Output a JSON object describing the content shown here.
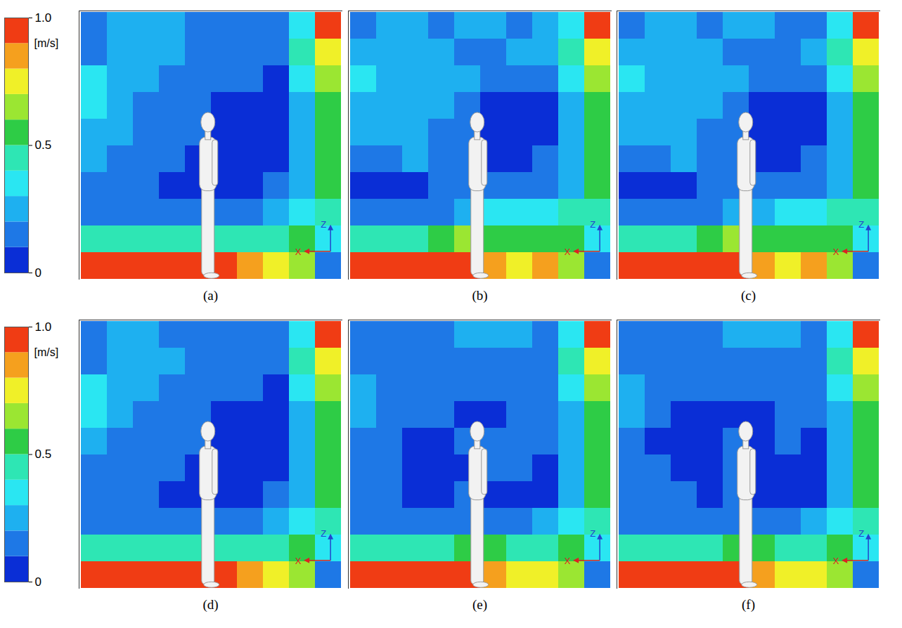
{
  "chart_data": {
    "type": "heatmap",
    "tick_labels": false,
    "xlabel": "X",
    "ylabel": "Z",
    "colorbar": {
      "label": "[m/s]",
      "range": [
        0,
        1
      ],
      "ticks": [
        0,
        0.5,
        {
          "value": 1,
          "label": "1.0"
        }
      ],
      "levels": [
        0,
        0.1,
        0.2,
        0.3,
        0.4,
        0.5,
        0.6,
        0.7,
        0.8,
        0.9,
        1
      ],
      "colors": [
        "#0a2ed6",
        "#1e78e6",
        "#1eb0f0",
        "#2ae6f2",
        "#2ee6b4",
        "#2ecc46",
        "#9be632",
        "#f0f028",
        "#f5a01e",
        "#f03c14"
      ]
    },
    "panels": [
      {
        "title": "(a)",
        "cells": [
          [
            0.15,
            0.25,
            0.25,
            0.25,
            0.15,
            0.15,
            0.15,
            0.15,
            0.35,
            0.95
          ],
          [
            0.15,
            0.25,
            0.25,
            0.25,
            0.15,
            0.15,
            0.15,
            0.15,
            0.45,
            0.75
          ],
          [
            0.3,
            0.25,
            0.25,
            0.15,
            0.15,
            0.15,
            0.15,
            0.05,
            0.35,
            0.6
          ],
          [
            0.3,
            0.25,
            0.15,
            0.15,
            0.15,
            0.05,
            0.05,
            0.05,
            0.25,
            0.55
          ],
          [
            0.25,
            0.25,
            0.15,
            0.15,
            0.15,
            0.05,
            0.05,
            0.05,
            0.25,
            0.55
          ],
          [
            0.2,
            0.15,
            0.15,
            0.15,
            0.05,
            0.05,
            0.05,
            0.05,
            0.25,
            0.5
          ],
          [
            0.15,
            0.15,
            0.15,
            0.05,
            0.05,
            0.05,
            0.05,
            0.15,
            0.25,
            0.5
          ],
          [
            0.15,
            0.15,
            0.15,
            0.15,
            0.15,
            0.15,
            0.15,
            0.25,
            0.35,
            0.45
          ],
          [
            0.45,
            0.45,
            0.45,
            0.45,
            0.45,
            0.45,
            0.45,
            0.45,
            0.55,
            0.35
          ],
          [
            0.95,
            0.95,
            0.95,
            0.95,
            0.95,
            0.95,
            0.85,
            0.75,
            0.65,
            0.15
          ]
        ]
      },
      {
        "title": "(b)",
        "cells": [
          [
            0.15,
            0.25,
            0.25,
            0.15,
            0.25,
            0.25,
            0.15,
            0.25,
            0.35,
            0.95
          ],
          [
            0.25,
            0.25,
            0.25,
            0.25,
            0.15,
            0.15,
            0.25,
            0.25,
            0.45,
            0.75
          ],
          [
            0.3,
            0.25,
            0.25,
            0.25,
            0.25,
            0.15,
            0.15,
            0.15,
            0.35,
            0.6
          ],
          [
            0.25,
            0.25,
            0.25,
            0.25,
            0.15,
            0.05,
            0.05,
            0.05,
            0.25,
            0.55
          ],
          [
            0.25,
            0.25,
            0.25,
            0.15,
            0.15,
            0.05,
            0.05,
            0.05,
            0.25,
            0.55
          ],
          [
            0.15,
            0.15,
            0.25,
            0.15,
            0.15,
            0.05,
            0.05,
            0.15,
            0.25,
            0.5
          ],
          [
            0.05,
            0.05,
            0.05,
            0.15,
            0.15,
            0.15,
            0.15,
            0.15,
            0.25,
            0.5
          ],
          [
            0.15,
            0.15,
            0.15,
            0.15,
            0.25,
            0.35,
            0.35,
            0.35,
            0.45,
            0.45
          ],
          [
            0.45,
            0.45,
            0.45,
            0.55,
            0.65,
            0.55,
            0.55,
            0.55,
            0.55,
            0.35
          ],
          [
            0.95,
            0.95,
            0.95,
            0.95,
            0.95,
            0.85,
            0.75,
            0.85,
            0.65,
            0.15
          ]
        ]
      },
      {
        "title": "(c)",
        "cells": [
          [
            0.15,
            0.25,
            0.25,
            0.15,
            0.25,
            0.25,
            0.15,
            0.15,
            0.35,
            0.95
          ],
          [
            0.25,
            0.25,
            0.25,
            0.25,
            0.15,
            0.15,
            0.15,
            0.25,
            0.45,
            0.75
          ],
          [
            0.3,
            0.25,
            0.25,
            0.25,
            0.25,
            0.15,
            0.15,
            0.15,
            0.35,
            0.6
          ],
          [
            0.25,
            0.25,
            0.25,
            0.25,
            0.15,
            0.05,
            0.05,
            0.05,
            0.25,
            0.55
          ],
          [
            0.25,
            0.25,
            0.25,
            0.15,
            0.15,
            0.05,
            0.05,
            0.05,
            0.25,
            0.55
          ],
          [
            0.15,
            0.15,
            0.25,
            0.15,
            0.15,
            0.05,
            0.05,
            0.15,
            0.25,
            0.5
          ],
          [
            0.05,
            0.05,
            0.05,
            0.15,
            0.15,
            0.15,
            0.15,
            0.15,
            0.25,
            0.5
          ],
          [
            0.15,
            0.15,
            0.15,
            0.15,
            0.25,
            0.25,
            0.35,
            0.35,
            0.45,
            0.45
          ],
          [
            0.45,
            0.45,
            0.45,
            0.55,
            0.65,
            0.55,
            0.55,
            0.55,
            0.55,
            0.35
          ],
          [
            0.95,
            0.95,
            0.95,
            0.95,
            0.95,
            0.85,
            0.75,
            0.85,
            0.65,
            0.15
          ]
        ]
      },
      {
        "title": "(d)",
        "cells": [
          [
            0.15,
            0.25,
            0.25,
            0.15,
            0.15,
            0.15,
            0.15,
            0.15,
            0.35,
            0.95
          ],
          [
            0.15,
            0.25,
            0.25,
            0.25,
            0.15,
            0.15,
            0.15,
            0.15,
            0.45,
            0.75
          ],
          [
            0.3,
            0.25,
            0.25,
            0.15,
            0.15,
            0.15,
            0.15,
            0.05,
            0.35,
            0.6
          ],
          [
            0.3,
            0.25,
            0.15,
            0.15,
            0.15,
            0.05,
            0.05,
            0.05,
            0.25,
            0.55
          ],
          [
            0.25,
            0.15,
            0.15,
            0.15,
            0.15,
            0.05,
            0.05,
            0.05,
            0.25,
            0.55
          ],
          [
            0.15,
            0.15,
            0.15,
            0.15,
            0.05,
            0.05,
            0.05,
            0.05,
            0.25,
            0.5
          ],
          [
            0.15,
            0.15,
            0.15,
            0.05,
            0.05,
            0.05,
            0.05,
            0.15,
            0.25,
            0.5
          ],
          [
            0.15,
            0.15,
            0.15,
            0.15,
            0.15,
            0.15,
            0.15,
            0.25,
            0.35,
            0.45
          ],
          [
            0.45,
            0.45,
            0.45,
            0.45,
            0.45,
            0.45,
            0.45,
            0.45,
            0.55,
            0.35
          ],
          [
            0.95,
            0.95,
            0.95,
            0.95,
            0.95,
            0.95,
            0.85,
            0.75,
            0.65,
            0.15
          ]
        ]
      },
      {
        "title": "(e)",
        "cells": [
          [
            0.15,
            0.15,
            0.15,
            0.15,
            0.25,
            0.25,
            0.25,
            0.15,
            0.35,
            0.95
          ],
          [
            0.15,
            0.15,
            0.15,
            0.15,
            0.15,
            0.15,
            0.15,
            0.15,
            0.45,
            0.75
          ],
          [
            0.25,
            0.15,
            0.15,
            0.15,
            0.15,
            0.15,
            0.15,
            0.15,
            0.35,
            0.6
          ],
          [
            0.25,
            0.15,
            0.15,
            0.15,
            0.05,
            0.05,
            0.15,
            0.15,
            0.25,
            0.55
          ],
          [
            0.15,
            0.15,
            0.05,
            0.05,
            0.15,
            0.15,
            0.15,
            0.15,
            0.25,
            0.55
          ],
          [
            0.15,
            0.15,
            0.05,
            0.05,
            0.05,
            0.15,
            0.15,
            0.05,
            0.25,
            0.5
          ],
          [
            0.15,
            0.15,
            0.05,
            0.05,
            0.15,
            0.05,
            0.05,
            0.05,
            0.25,
            0.5
          ],
          [
            0.15,
            0.15,
            0.15,
            0.15,
            0.15,
            0.15,
            0.15,
            0.25,
            0.35,
            0.45
          ],
          [
            0.45,
            0.45,
            0.45,
            0.45,
            0.55,
            0.55,
            0.45,
            0.45,
            0.55,
            0.35
          ],
          [
            0.95,
            0.95,
            0.95,
            0.95,
            0.95,
            0.85,
            0.75,
            0.75,
            0.65,
            0.15
          ]
        ]
      },
      {
        "title": "(f)",
        "cells": [
          [
            0.15,
            0.15,
            0.15,
            0.15,
            0.25,
            0.25,
            0.25,
            0.15,
            0.35,
            0.95
          ],
          [
            0.15,
            0.15,
            0.15,
            0.15,
            0.15,
            0.15,
            0.15,
            0.15,
            0.45,
            0.75
          ],
          [
            0.25,
            0.15,
            0.15,
            0.15,
            0.15,
            0.15,
            0.15,
            0.15,
            0.35,
            0.6
          ],
          [
            0.25,
            0.15,
            0.05,
            0.05,
            0.05,
            0.05,
            0.15,
            0.15,
            0.25,
            0.55
          ],
          [
            0.15,
            0.05,
            0.05,
            0.05,
            0.15,
            0.05,
            0.15,
            0.05,
            0.25,
            0.55
          ],
          [
            0.15,
            0.15,
            0.05,
            0.05,
            0.15,
            0.05,
            0.05,
            0.05,
            0.25,
            0.5
          ],
          [
            0.15,
            0.15,
            0.15,
            0.05,
            0.15,
            0.05,
            0.05,
            0.05,
            0.25,
            0.5
          ],
          [
            0.15,
            0.15,
            0.15,
            0.15,
            0.15,
            0.15,
            0.15,
            0.25,
            0.35,
            0.45
          ],
          [
            0.45,
            0.45,
            0.45,
            0.45,
            0.55,
            0.55,
            0.45,
            0.45,
            0.55,
            0.35
          ],
          [
            0.95,
            0.95,
            0.95,
            0.95,
            0.95,
            0.85,
            0.75,
            0.75,
            0.65,
            0.15
          ]
        ]
      }
    ]
  }
}
